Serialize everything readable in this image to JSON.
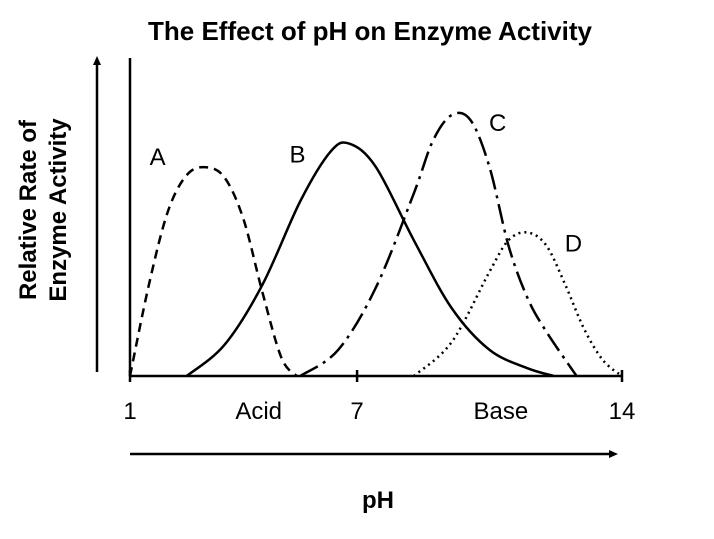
{
  "chart_data": {
    "type": "line",
    "title": "The Effect of pH on Enzyme Activity",
    "xlabel": "pH",
    "ylabel": [
      "Relative Rate of",
      "Enzyme Activity"
    ],
    "xlim": [
      1,
      14
    ],
    "ylim": [
      0,
      1
    ],
    "x_ticks": [
      {
        "value": 1,
        "label": "1"
      },
      {
        "value": 7,
        "label": "7"
      },
      {
        "value": 14,
        "label": "14"
      }
    ],
    "region_labels": [
      {
        "value": 4.4,
        "label": "Acid"
      },
      {
        "value": 10.8,
        "label": "Base"
      }
    ],
    "grid": false,
    "series": [
      {
        "name": "A",
        "style": "dashed",
        "x": [
          1.0,
          1.5,
          2.0,
          2.5,
          3.0,
          3.5,
          4.0,
          4.5,
          5.0,
          5.4
        ],
        "y": [
          0.0,
          0.35,
          0.63,
          0.77,
          0.8,
          0.76,
          0.6,
          0.32,
          0.07,
          0.0
        ]
      },
      {
        "name": "B",
        "style": "solid",
        "x": [
          2.5,
          3.5,
          4.5,
          5.5,
          6.3,
          6.8,
          7.5,
          8.5,
          9.5,
          10.5,
          11.5,
          12.2
        ],
        "y": [
          0.0,
          0.12,
          0.35,
          0.67,
          0.86,
          0.89,
          0.8,
          0.52,
          0.26,
          0.1,
          0.03,
          0.0
        ]
      },
      {
        "name": "C",
        "style": "dash-dot",
        "x": [
          5.5,
          6.5,
          7.5,
          8.5,
          9.0,
          9.5,
          10.0,
          10.5,
          11.0,
          11.5,
          12.0,
          12.8
        ],
        "y": [
          0.0,
          0.1,
          0.34,
          0.7,
          0.9,
          1.0,
          0.98,
          0.8,
          0.5,
          0.3,
          0.17,
          0.0
        ]
      },
      {
        "name": "D",
        "style": "dotted",
        "x": [
          8.5,
          9.5,
          10.5,
          11.0,
          11.5,
          12.0,
          12.5,
          13.0,
          13.5,
          14.0
        ],
        "y": [
          0.0,
          0.13,
          0.4,
          0.52,
          0.55,
          0.5,
          0.35,
          0.18,
          0.06,
          0.0
        ]
      }
    ]
  }
}
